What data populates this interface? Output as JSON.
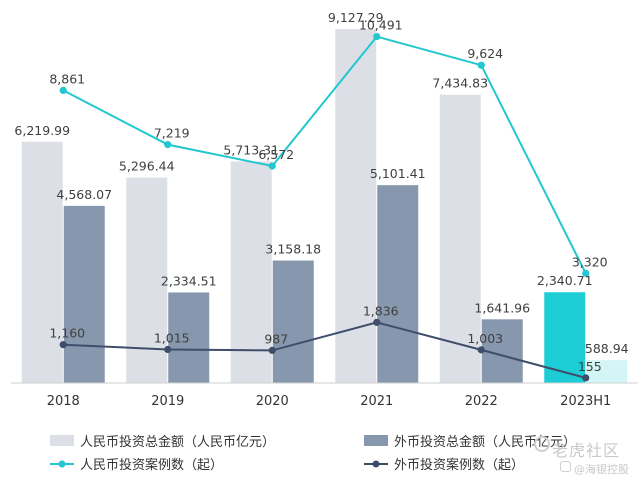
{
  "chart_data": {
    "type": "bar",
    "categories": [
      "2018",
      "2019",
      "2020",
      "2021",
      "2022",
      "2023H1"
    ],
    "ylim_bars": [
      0,
      10000
    ],
    "ylim_lines": [
      0,
      11000
    ],
    "series": [
      {
        "name": "人民币投资总金额（人民币亿元）",
        "kind": "bar",
        "values": [
          6219.99,
          5296.44,
          5713.31,
          9127.29,
          7434.83,
          2340.71
        ],
        "labels": [
          "6,219.99",
          "5,296.44",
          "5,713.31",
          "9,127.29",
          "7,434.83",
          "2,340.71"
        ],
        "color": "#dcdfe6",
        "highlight_color": "#1ccdd6"
      },
      {
        "name": "外币投资总金额（人民币亿元）",
        "kind": "bar",
        "values": [
          4568.07,
          2334.51,
          3158.18,
          5101.41,
          1641.96,
          588.94
        ],
        "labels": [
          "4,568.07",
          "2,334.51",
          "3,158.18",
          "5,101.41",
          "1,641.96",
          "588.94"
        ],
        "color": "#8797ad",
        "highlight_color": "#d3f5f6"
      },
      {
        "name": "人民币投资案例数（起）",
        "kind": "line",
        "values": [
          8861,
          7219,
          6572,
          10491,
          9624,
          3320
        ],
        "labels": [
          "8,861",
          "7,219",
          "6,572",
          "10,491",
          "9,624",
          "3,320"
        ],
        "color": "#22c7d0"
      },
      {
        "name": "外币投资案例数（起）",
        "kind": "line",
        "values": [
          1160,
          1015,
          987,
          1836,
          1003,
          155
        ],
        "labels": [
          "1,160",
          "1,015",
          "987",
          "1,836",
          "1,003",
          "155"
        ],
        "color": "#3e4e6a"
      }
    ],
    "grid": false,
    "legend_position": "bottom"
  },
  "watermark": {
    "main": "老虎社区",
    "sub": "@海银控股"
  }
}
